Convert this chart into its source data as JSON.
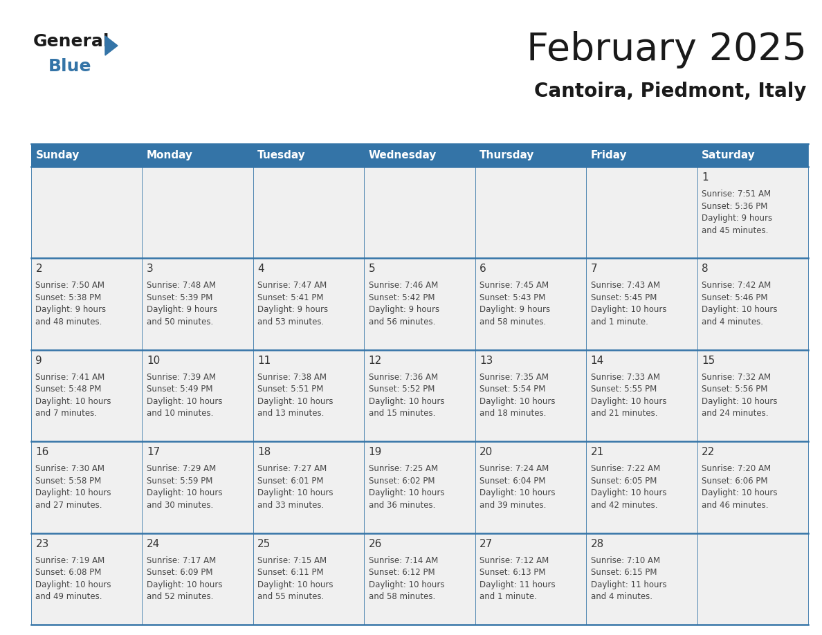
{
  "title": "February 2025",
  "subtitle": "Cantoira, Piedmont, Italy",
  "days_of_week": [
    "Sunday",
    "Monday",
    "Tuesday",
    "Wednesday",
    "Thursday",
    "Friday",
    "Saturday"
  ],
  "header_bg": "#3474a7",
  "header_text": "#ffffff",
  "row_bg": "#f0f0f0",
  "cell_border_color": "#3474a7",
  "day_number_color": "#333333",
  "info_text_color": "#444444",
  "title_color": "#1a1a1a",
  "subtitle_color": "#1a1a1a",
  "logo_general_color": "#1a1a1a",
  "logo_blue_color": "#3474a7",
  "logo_triangle_color": "#3474a7",
  "weeks": [
    [
      {
        "day": null,
        "info": ""
      },
      {
        "day": null,
        "info": ""
      },
      {
        "day": null,
        "info": ""
      },
      {
        "day": null,
        "info": ""
      },
      {
        "day": null,
        "info": ""
      },
      {
        "day": null,
        "info": ""
      },
      {
        "day": 1,
        "info": "Sunrise: 7:51 AM\nSunset: 5:36 PM\nDaylight: 9 hours\nand 45 minutes."
      }
    ],
    [
      {
        "day": 2,
        "info": "Sunrise: 7:50 AM\nSunset: 5:38 PM\nDaylight: 9 hours\nand 48 minutes."
      },
      {
        "day": 3,
        "info": "Sunrise: 7:48 AM\nSunset: 5:39 PM\nDaylight: 9 hours\nand 50 minutes."
      },
      {
        "day": 4,
        "info": "Sunrise: 7:47 AM\nSunset: 5:41 PM\nDaylight: 9 hours\nand 53 minutes."
      },
      {
        "day": 5,
        "info": "Sunrise: 7:46 AM\nSunset: 5:42 PM\nDaylight: 9 hours\nand 56 minutes."
      },
      {
        "day": 6,
        "info": "Sunrise: 7:45 AM\nSunset: 5:43 PM\nDaylight: 9 hours\nand 58 minutes."
      },
      {
        "day": 7,
        "info": "Sunrise: 7:43 AM\nSunset: 5:45 PM\nDaylight: 10 hours\nand 1 minute."
      },
      {
        "day": 8,
        "info": "Sunrise: 7:42 AM\nSunset: 5:46 PM\nDaylight: 10 hours\nand 4 minutes."
      }
    ],
    [
      {
        "day": 9,
        "info": "Sunrise: 7:41 AM\nSunset: 5:48 PM\nDaylight: 10 hours\nand 7 minutes."
      },
      {
        "day": 10,
        "info": "Sunrise: 7:39 AM\nSunset: 5:49 PM\nDaylight: 10 hours\nand 10 minutes."
      },
      {
        "day": 11,
        "info": "Sunrise: 7:38 AM\nSunset: 5:51 PM\nDaylight: 10 hours\nand 13 minutes."
      },
      {
        "day": 12,
        "info": "Sunrise: 7:36 AM\nSunset: 5:52 PM\nDaylight: 10 hours\nand 15 minutes."
      },
      {
        "day": 13,
        "info": "Sunrise: 7:35 AM\nSunset: 5:54 PM\nDaylight: 10 hours\nand 18 minutes."
      },
      {
        "day": 14,
        "info": "Sunrise: 7:33 AM\nSunset: 5:55 PM\nDaylight: 10 hours\nand 21 minutes."
      },
      {
        "day": 15,
        "info": "Sunrise: 7:32 AM\nSunset: 5:56 PM\nDaylight: 10 hours\nand 24 minutes."
      }
    ],
    [
      {
        "day": 16,
        "info": "Sunrise: 7:30 AM\nSunset: 5:58 PM\nDaylight: 10 hours\nand 27 minutes."
      },
      {
        "day": 17,
        "info": "Sunrise: 7:29 AM\nSunset: 5:59 PM\nDaylight: 10 hours\nand 30 minutes."
      },
      {
        "day": 18,
        "info": "Sunrise: 7:27 AM\nSunset: 6:01 PM\nDaylight: 10 hours\nand 33 minutes."
      },
      {
        "day": 19,
        "info": "Sunrise: 7:25 AM\nSunset: 6:02 PM\nDaylight: 10 hours\nand 36 minutes."
      },
      {
        "day": 20,
        "info": "Sunrise: 7:24 AM\nSunset: 6:04 PM\nDaylight: 10 hours\nand 39 minutes."
      },
      {
        "day": 21,
        "info": "Sunrise: 7:22 AM\nSunset: 6:05 PM\nDaylight: 10 hours\nand 42 minutes."
      },
      {
        "day": 22,
        "info": "Sunrise: 7:20 AM\nSunset: 6:06 PM\nDaylight: 10 hours\nand 46 minutes."
      }
    ],
    [
      {
        "day": 23,
        "info": "Sunrise: 7:19 AM\nSunset: 6:08 PM\nDaylight: 10 hours\nand 49 minutes."
      },
      {
        "day": 24,
        "info": "Sunrise: 7:17 AM\nSunset: 6:09 PM\nDaylight: 10 hours\nand 52 minutes."
      },
      {
        "day": 25,
        "info": "Sunrise: 7:15 AM\nSunset: 6:11 PM\nDaylight: 10 hours\nand 55 minutes."
      },
      {
        "day": 26,
        "info": "Sunrise: 7:14 AM\nSunset: 6:12 PM\nDaylight: 10 hours\nand 58 minutes."
      },
      {
        "day": 27,
        "info": "Sunrise: 7:12 AM\nSunset: 6:13 PM\nDaylight: 11 hours\nand 1 minute."
      },
      {
        "day": 28,
        "info": "Sunrise: 7:10 AM\nSunset: 6:15 PM\nDaylight: 11 hours\nand 4 minutes."
      },
      {
        "day": null,
        "info": ""
      }
    ]
  ]
}
